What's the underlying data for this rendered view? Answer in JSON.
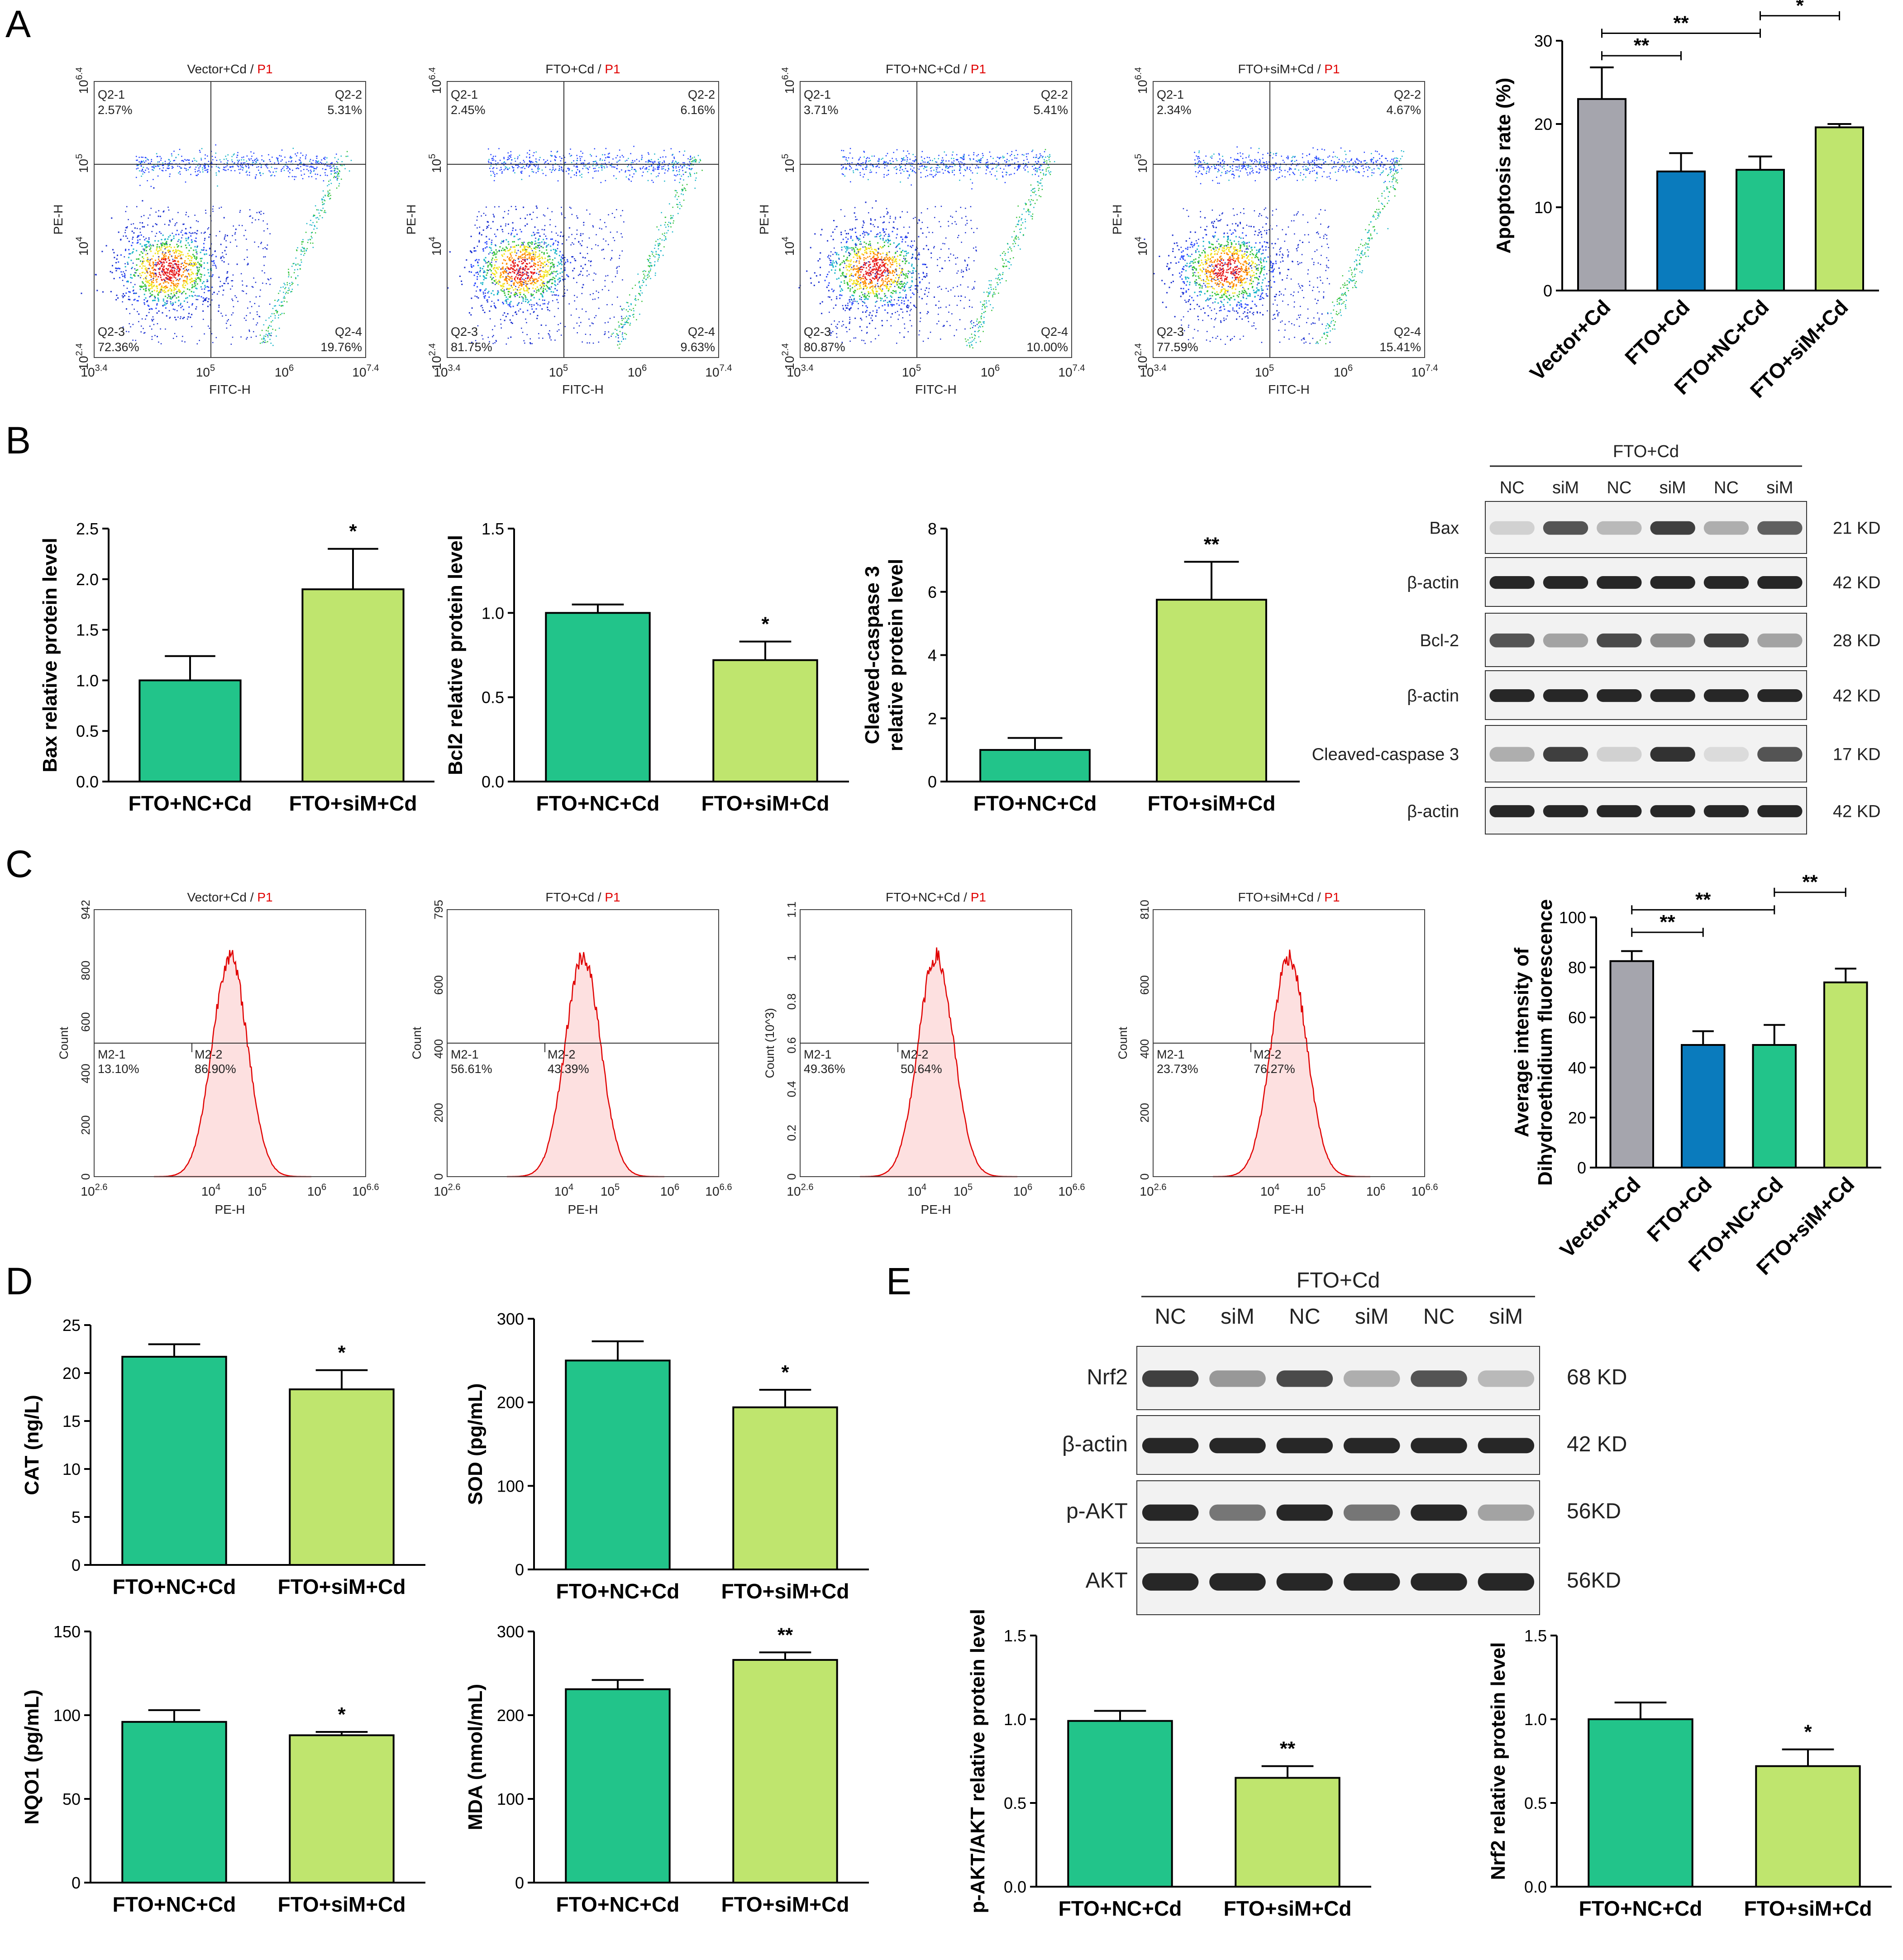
{
  "colors": {
    "vector": "#a5a5ad",
    "fto": "#0a7bbd",
    "fto_nc": "#22c48a",
    "fto_sim": "#bfe56e",
    "caption_red": "#e00000",
    "histogram_line": "#e00000",
    "histogram_fill": "#fde0e0"
  },
  "panel_labels": {
    "A": "A",
    "B": "B",
    "C": "C",
    "D": "D",
    "E": "E"
  },
  "panelA": {
    "y_axis": "PE-H",
    "x_axis": "FITC-H",
    "x_ticks": [
      "10^3.4",
      "10^5",
      "10^6",
      "10^7.4"
    ],
    "y_ticks": [
      "10^2.4",
      "10^4",
      "10^5",
      "10^6.4"
    ],
    "plots": [
      {
        "group": "Vector+Cd",
        "gate": "P1",
        "q1_name": "Q2-1",
        "q1": "2.57%",
        "q2_name": "Q2-2",
        "q2": "5.31%",
        "q3_name": "Q2-3",
        "q3": "72.36%",
        "q4_name": "Q2-4",
        "q4": "19.76%"
      },
      {
        "group": "FTO+Cd",
        "gate": "P1",
        "q1_name": "Q2-1",
        "q1": "2.45%",
        "q2_name": "Q2-2",
        "q2": "6.16%",
        "q3_name": "Q2-3",
        "q3": "81.75%",
        "q4_name": "Q2-4",
        "q4": "9.63%"
      },
      {
        "group": "FTO+NC+Cd",
        "gate": "P1",
        "q1_name": "Q2-1",
        "q1": "3.71%",
        "q2_name": "Q2-2",
        "q2": "5.41%",
        "q3_name": "Q2-3",
        "q3": "80.87%",
        "q4_name": "Q2-4",
        "q4": "10.00%"
      },
      {
        "group": "FTO+siM+Cd",
        "gate": "P1",
        "q1_name": "Q2-1",
        "q1": "2.34%",
        "q2_name": "Q2-2",
        "q2": "4.67%",
        "q3_name": "Q2-3",
        "q3": "77.59%",
        "q4_name": "Q2-4",
        "q4": "15.41%"
      }
    ]
  },
  "panelC": {
    "y_axis": "Count",
    "y_axis_scaled": "Count (10^3)",
    "x_axis": "PE-H",
    "x_ticks": [
      "10^2.6",
      "10^4",
      "10^5",
      "10^6",
      "10^6.6"
    ],
    "plots": [
      {
        "group": "Vector+Cd",
        "gate": "P1",
        "y_max": "942",
        "y_ticks": [
          "0",
          "200",
          "400",
          "600",
          "800",
          "942"
        ],
        "m1_name": "M2-1",
        "m1": "13.10%",
        "m2_name": "M2-2",
        "m2": "86.90%"
      },
      {
        "group": "FTO+Cd",
        "gate": "P1",
        "y_max": "795",
        "y_ticks": [
          "0",
          "200",
          "400",
          "600",
          "795"
        ],
        "m1_name": "M2-1",
        "m1": "56.61%",
        "m2_name": "M2-2",
        "m2": "43.39%"
      },
      {
        "group": "FTO+NC+Cd",
        "gate": "P1",
        "y_max": "1.1",
        "y_ticks": [
          "0",
          "0.2",
          "0.4",
          "0.6",
          "0.8",
          "1",
          "1.1"
        ],
        "m1_name": "M2-1",
        "m1": "49.36%",
        "m2_name": "M2-2",
        "m2": "50.64%"
      },
      {
        "group": "FTO+siM+Cd",
        "gate": "P1",
        "y_max": "810",
        "y_ticks": [
          "0",
          "200",
          "400",
          "600",
          "810"
        ],
        "m1_name": "M2-1",
        "m1": "23.73%",
        "m2_name": "M2-2",
        "m2": "76.27%"
      }
    ]
  },
  "blotB": {
    "header": "FTO+Cd",
    "lanes": [
      "NC",
      "siM",
      "NC",
      "siM",
      "NC",
      "siM"
    ],
    "rows": [
      {
        "label": "Bax",
        "kd": "21 KD"
      },
      {
        "label": "β-actin",
        "kd": "42 KD"
      },
      {
        "label": "Bcl-2",
        "kd": "28 KD"
      },
      {
        "label": "β-actin",
        "kd": "42 KD"
      },
      {
        "label": "Cleaved-caspase 3",
        "kd": "17 KD"
      },
      {
        "label": "β-actin",
        "kd": "42 KD"
      }
    ]
  },
  "blotE": {
    "header": "FTO+Cd",
    "lanes": [
      "NC",
      "siM",
      "NC",
      "siM",
      "NC",
      "siM"
    ],
    "rows": [
      {
        "label": "Nrf2",
        "kd": "68 KD"
      },
      {
        "label": "β-actin",
        "kd": "42 KD"
      },
      {
        "label": "p-AKT",
        "kd": "56KD"
      },
      {
        "label": "AKT",
        "kd": "56KD"
      }
    ]
  },
  "chart_data": [
    {
      "id": "A_apoptosis",
      "type": "bar",
      "title": "",
      "xlabel": "",
      "ylabel": "Apoptosis rate (%)",
      "categories": [
        "Vector+Cd",
        "FTO+Cd",
        "FTO+NC+Cd",
        "FTO+siM+Cd"
      ],
      "values": [
        23.0,
        14.3,
        14.5,
        19.6
      ],
      "errors": [
        3.8,
        2.2,
        1.6,
        0.4
      ],
      "ylim": [
        0,
        30
      ],
      "yticks": [
        "0",
        "10",
        "20",
        "30"
      ],
      "rotated_labels": true,
      "significance": [
        {
          "from": 0,
          "to": 1,
          "label": "**"
        },
        {
          "from": 0,
          "to": 2,
          "label": "**"
        },
        {
          "from": 2,
          "to": 3,
          "label": "*"
        }
      ]
    },
    {
      "id": "B_bax",
      "type": "bar",
      "title": "",
      "xlabel": "",
      "ylabel": "Bax relative protein level",
      "categories": [
        "FTO+NC+Cd",
        "FTO+siM+Cd"
      ],
      "values": [
        1.0,
        1.9
      ],
      "errors": [
        0.24,
        0.4
      ],
      "ylim": [
        0,
        2.5
      ],
      "yticks": [
        "0.0",
        "0.5",
        "1.0",
        "1.5",
        "2.0",
        "2.5"
      ],
      "significance": [
        {
          "bar": 1,
          "label": "*"
        }
      ]
    },
    {
      "id": "B_bcl2",
      "type": "bar",
      "title": "",
      "xlabel": "",
      "ylabel": "Bcl2 relative protein level",
      "categories": [
        "FTO+NC+Cd",
        "FTO+siM+Cd"
      ],
      "values": [
        1.0,
        0.72
      ],
      "errors": [
        0.05,
        0.11
      ],
      "ylim": [
        0,
        1.5
      ],
      "yticks": [
        "0.0",
        "0.5",
        "1.0",
        "1.5"
      ],
      "significance": [
        {
          "bar": 1,
          "label": "*"
        }
      ]
    },
    {
      "id": "B_casp3",
      "type": "bar",
      "title": "",
      "xlabel": "",
      "ylabel": "Cleaved-caspase 3",
      "ylabel2": "relative protein level",
      "categories": [
        "FTO+NC+Cd",
        "FTO+siM+Cd"
      ],
      "values": [
        1.0,
        5.75
      ],
      "errors": [
        0.38,
        1.2
      ],
      "ylim": [
        0,
        8
      ],
      "yticks": [
        "0",
        "2",
        "4",
        "6",
        "8"
      ],
      "significance": [
        {
          "bar": 1,
          "label": "**"
        }
      ]
    },
    {
      "id": "C_dhe",
      "type": "bar",
      "title": "",
      "xlabel": "",
      "ylabel": "Average intensity of",
      "ylabel2": "Dihydroethidium fluorescence",
      "categories": [
        "Vector+Cd",
        "FTO+Cd",
        "FTO+NC+Cd",
        "FTO+siM+Cd"
      ],
      "values": [
        82.5,
        49.0,
        49.0,
        74.0
      ],
      "errors": [
        4.0,
        5.5,
        8.0,
        5.5
      ],
      "ylim": [
        0,
        100
      ],
      "yticks": [
        "0",
        "20",
        "40",
        "60",
        "80",
        "100"
      ],
      "rotated_labels": true,
      "significance": [
        {
          "from": 0,
          "to": 1,
          "label": "**"
        },
        {
          "from": 0,
          "to": 2,
          "label": "**"
        },
        {
          "from": 2,
          "to": 3,
          "label": "**"
        }
      ]
    },
    {
      "id": "D_cat",
      "type": "bar",
      "title": "",
      "xlabel": "",
      "ylabel": "CAT (ng/L)",
      "categories": [
        "FTO+NC+Cd",
        "FTO+siM+Cd"
      ],
      "values": [
        21.7,
        18.3
      ],
      "errors": [
        1.3,
        2.0
      ],
      "ylim": [
        0,
        25
      ],
      "yticks": [
        "0",
        "5",
        "10",
        "15",
        "20",
        "25"
      ],
      "significance": [
        {
          "bar": 1,
          "label": "*"
        }
      ]
    },
    {
      "id": "D_sod",
      "type": "bar",
      "title": "",
      "xlabel": "",
      "ylabel": "SOD (pg/mL)",
      "categories": [
        "FTO+NC+Cd",
        "FTO+siM+Cd"
      ],
      "values": [
        250,
        194
      ],
      "errors": [
        23,
        21
      ],
      "ylim": [
        0,
        300
      ],
      "yticks": [
        "0",
        "100",
        "200",
        "300"
      ],
      "significance": [
        {
          "bar": 1,
          "label": "*"
        }
      ]
    },
    {
      "id": "D_nqo1",
      "type": "bar",
      "title": "",
      "xlabel": "",
      "ylabel": "NQO1 (pg/mL)",
      "categories": [
        "FTO+NC+Cd",
        "FTO+siM+Cd"
      ],
      "values": [
        96,
        88
      ],
      "errors": [
        7,
        2
      ],
      "ylim": [
        0,
        150
      ],
      "yticks": [
        "0",
        "50",
        "100",
        "150"
      ],
      "significance": [
        {
          "bar": 1,
          "label": "*"
        }
      ]
    },
    {
      "id": "D_mda",
      "type": "bar",
      "title": "",
      "xlabel": "",
      "ylabel": "MDA (nmol/mL)",
      "categories": [
        "FTO+NC+Cd",
        "FTO+siM+Cd"
      ],
      "values": [
        231,
        266
      ],
      "errors": [
        11,
        9
      ],
      "ylim": [
        0,
        300
      ],
      "yticks": [
        "0",
        "100",
        "200",
        "300"
      ],
      "significance": [
        {
          "bar": 1,
          "label": "**"
        }
      ]
    },
    {
      "id": "E_pakt",
      "type": "bar",
      "title": "",
      "xlabel": "",
      "ylabel": "p-AKT/AKT relative protein level",
      "categories": [
        "FTO+NC+Cd",
        "FTO+siM+Cd"
      ],
      "values": [
        0.99,
        0.65
      ],
      "errors": [
        0.06,
        0.07
      ],
      "ylim": [
        0,
        1.5
      ],
      "yticks": [
        "0.0",
        "0.5",
        "1.0",
        "1.5"
      ],
      "significance": [
        {
          "bar": 1,
          "label": "**"
        }
      ]
    },
    {
      "id": "E_nrf2",
      "type": "bar",
      "title": "",
      "xlabel": "",
      "ylabel": "Nrf2 relative protein level",
      "categories": [
        "FTO+NC+Cd",
        "FTO+siM+Cd"
      ],
      "values": [
        1.0,
        0.72
      ],
      "errors": [
        0.1,
        0.1
      ],
      "ylim": [
        0,
        1.5
      ],
      "yticks": [
        "0.0",
        "0.5",
        "1.0",
        "1.5"
      ],
      "significance": [
        {
          "bar": 1,
          "label": "*"
        }
      ]
    }
  ]
}
